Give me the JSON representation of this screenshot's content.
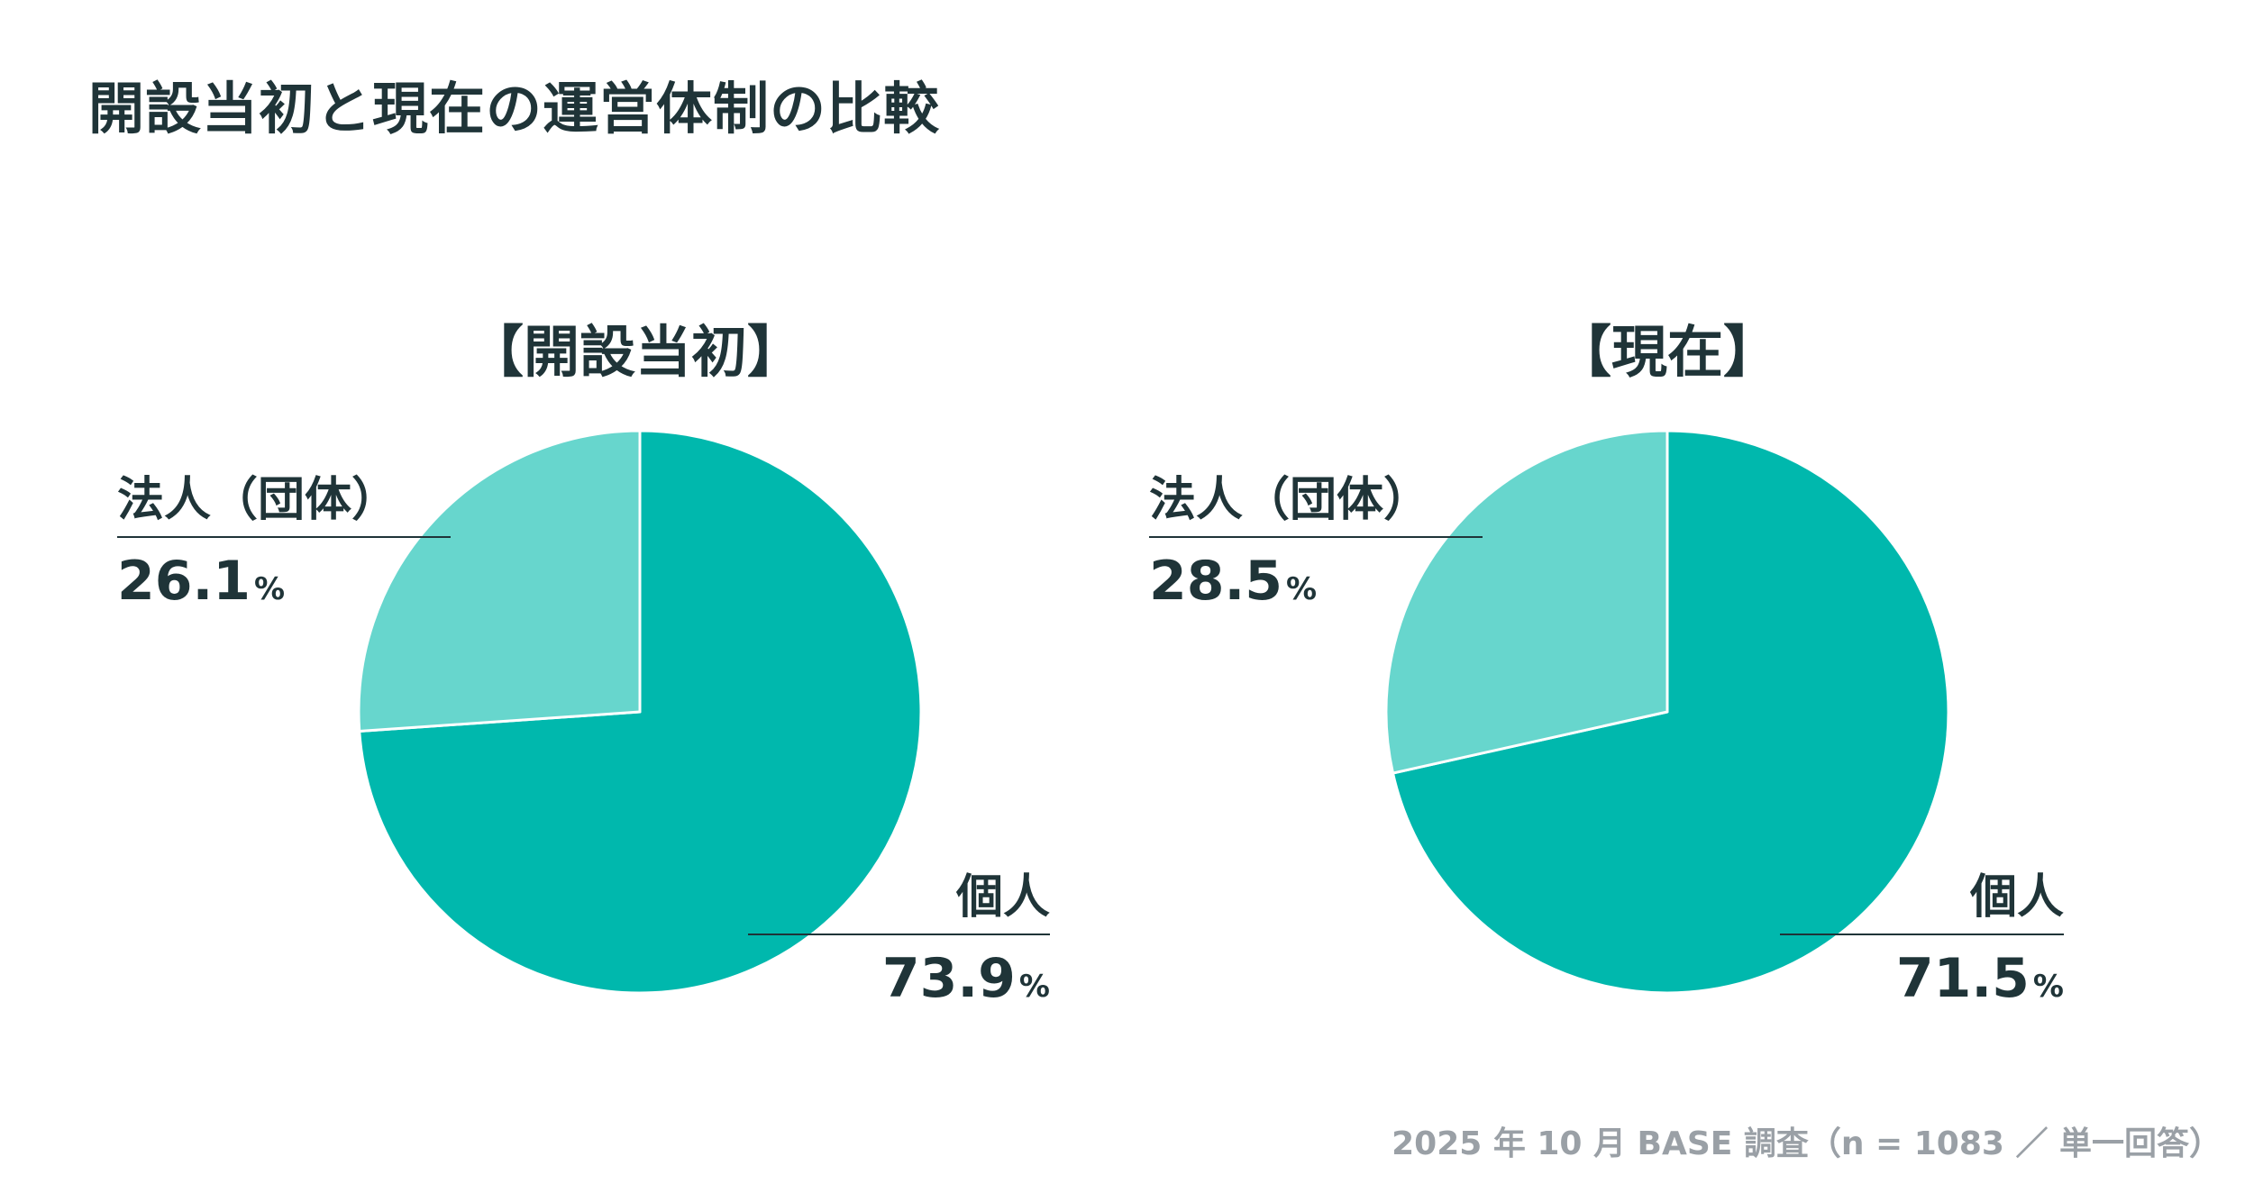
{
  "title": "開設当初と現在の運営体制の比較",
  "footnote": "2025 年 10 月 BASE 調査（n = 1083 ／ 単一回答）",
  "colors": {
    "individual": "#00b8ad",
    "corporate": "#67d6cd",
    "text": "#1f3438",
    "note": "#9aa0a6"
  },
  "chart_data": [
    {
      "type": "pie",
      "title": "【開設当初】",
      "slices": [
        {
          "label": "個人",
          "value": 73.9,
          "value_text": "73.9",
          "unit": "%",
          "color": "#00b8ad"
        },
        {
          "label": "法人（団体）",
          "value": 26.1,
          "value_text": "26.1",
          "unit": "%",
          "color": "#67d6cd"
        }
      ]
    },
    {
      "type": "pie",
      "title": "【現在】",
      "slices": [
        {
          "label": "個人",
          "value": 71.5,
          "value_text": "71.5",
          "unit": "%",
          "color": "#00b8ad"
        },
        {
          "label": "法人（団体）",
          "value": 28.5,
          "value_text": "28.5",
          "unit": "%",
          "color": "#67d6cd"
        }
      ]
    }
  ]
}
